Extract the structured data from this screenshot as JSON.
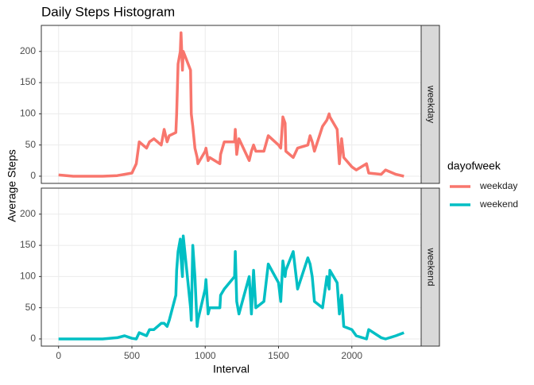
{
  "chart_data": {
    "type": "line",
    "title": "Daily Steps Histogram",
    "xlabel": "Interval",
    "ylabel": "Average Steps",
    "legend_title": "dayofweek",
    "legend": "right",
    "grid": true,
    "x": [
      0,
      100,
      200,
      300,
      400,
      450,
      500,
      530,
      550,
      600,
      620,
      650,
      700,
      720,
      740,
      755,
      800,
      805,
      815,
      830,
      835,
      845,
      850,
      900,
      905,
      915,
      930,
      945,
      950,
      1000,
      1005,
      1020,
      1030,
      1100,
      1105,
      1130,
      1200,
      1205,
      1215,
      1230,
      1300,
      1315,
      1330,
      1345,
      1400,
      1430,
      1500,
      1515,
      1530,
      1545,
      1550,
      1600,
      1630,
      1700,
      1715,
      1730,
      1745,
      1800,
      1830,
      1845,
      1850,
      1900,
      1915,
      1930,
      1945,
      2000,
      2030,
      2100,
      2115,
      2200,
      2230,
      2300,
      2355
    ],
    "series": [
      {
        "name": "weekday",
        "color": "#f8766d",
        "values": [
          2,
          0,
          0,
          0,
          1,
          3,
          5,
          20,
          55,
          45,
          55,
          60,
          50,
          75,
          55,
          65,
          70,
          100,
          180,
          200,
          230,
          170,
          200,
          170,
          100,
          80,
          45,
          30,
          20,
          40,
          45,
          25,
          30,
          20,
          35,
          55,
          55,
          75,
          35,
          60,
          25,
          40,
          50,
          40,
          40,
          65,
          50,
          45,
          95,
          85,
          40,
          30,
          45,
          50,
          65,
          55,
          40,
          80,
          90,
          100,
          95,
          75,
          20,
          60,
          30,
          15,
          10,
          20,
          5,
          3,
          10,
          3,
          0
        ]
      },
      {
        "name": "weekend",
        "color": "#00bfc4",
        "values": [
          0,
          0,
          0,
          0,
          2,
          5,
          1,
          0,
          10,
          5,
          15,
          15,
          25,
          25,
          20,
          30,
          70,
          110,
          140,
          160,
          130,
          100,
          165,
          50,
          30,
          150,
          100,
          20,
          30,
          80,
          95,
          40,
          50,
          50,
          70,
          80,
          100,
          140,
          60,
          40,
          100,
          40,
          110,
          50,
          60,
          120,
          90,
          60,
          125,
          100,
          110,
          140,
          80,
          130,
          120,
          100,
          60,
          50,
          100,
          80,
          110,
          90,
          40,
          70,
          20,
          15,
          5,
          0,
          15,
          2,
          0,
          5,
          10
        ]
      }
    ],
    "xlim": [
      -117.75,
      2472.75
    ],
    "xticks": [
      0,
      500,
      1000,
      1500,
      2000
    ],
    "ylim": [
      -11.5,
      241.7
    ],
    "yticks": [
      0,
      50,
      100,
      150,
      200
    ]
  }
}
